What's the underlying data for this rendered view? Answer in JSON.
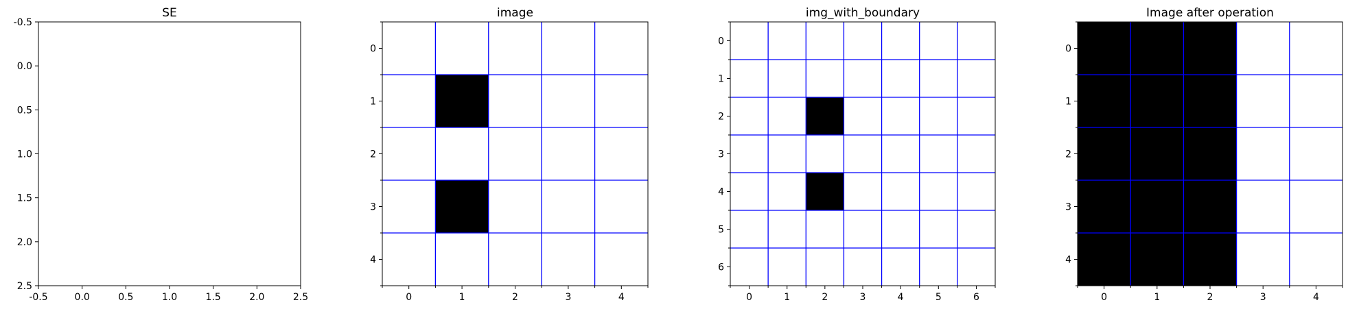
{
  "colors": {
    "grid": "#0000ff",
    "filled": "#000000",
    "empty": "#ffffff",
    "frame": "#000000"
  },
  "chart_data": [
    {
      "type": "heatmap",
      "title": "SE",
      "rows": 3,
      "cols": 3,
      "cells": [],
      "xlim": [
        -0.5,
        2.5
      ],
      "ylim": [
        2.5,
        -0.5
      ],
      "grid": false,
      "x_ticks": [
        "-0.5",
        "0.0",
        "0.5",
        "1.0",
        "1.5",
        "2.0",
        "2.5"
      ],
      "x_tick_values": [
        -0.5,
        0.0,
        0.5,
        1.0,
        1.5,
        2.0,
        2.5
      ],
      "y_ticks": [
        "-0.5",
        "0.0",
        "0.5",
        "1.0",
        "1.5",
        "2.0",
        "2.5"
      ],
      "y_tick_values": [
        -0.5,
        0.0,
        0.5,
        1.0,
        1.5,
        2.0,
        2.5
      ],
      "minor_ticks": false
    },
    {
      "type": "heatmap",
      "title": "image",
      "rows": 5,
      "cols": 5,
      "cells": [
        [
          0,
          0,
          0,
          0,
          0
        ],
        [
          0,
          1,
          0,
          0,
          0
        ],
        [
          0,
          0,
          0,
          0,
          0
        ],
        [
          0,
          1,
          0,
          0,
          0
        ],
        [
          0,
          0,
          0,
          0,
          0
        ]
      ],
      "xlim": [
        -0.5,
        4.5
      ],
      "ylim": [
        4.5,
        -0.5
      ],
      "grid": true,
      "x_ticks": [
        "0",
        "1",
        "2",
        "3",
        "4"
      ],
      "x_tick_values": [
        0,
        1,
        2,
        3,
        4
      ],
      "y_ticks": [
        "0",
        "1",
        "2",
        "3",
        "4"
      ],
      "y_tick_values": [
        0,
        1,
        2,
        3,
        4
      ],
      "minor_ticks": true
    },
    {
      "type": "heatmap",
      "title": "img_with_boundary",
      "rows": 7,
      "cols": 7,
      "cells": [
        [
          0,
          0,
          0,
          0,
          0,
          0,
          0
        ],
        [
          0,
          0,
          0,
          0,
          0,
          0,
          0
        ],
        [
          0,
          0,
          1,
          0,
          0,
          0,
          0
        ],
        [
          0,
          0,
          0,
          0,
          0,
          0,
          0
        ],
        [
          0,
          0,
          1,
          0,
          0,
          0,
          0
        ],
        [
          0,
          0,
          0,
          0,
          0,
          0,
          0
        ],
        [
          0,
          0,
          0,
          0,
          0,
          0,
          0
        ]
      ],
      "xlim": [
        -0.5,
        6.5
      ],
      "ylim": [
        6.5,
        -0.5
      ],
      "grid": true,
      "x_ticks": [
        "0",
        "1",
        "2",
        "3",
        "4",
        "5",
        "6"
      ],
      "x_tick_values": [
        0,
        1,
        2,
        3,
        4,
        5,
        6
      ],
      "y_ticks": [
        "0",
        "1",
        "2",
        "3",
        "4",
        "5",
        "6"
      ],
      "y_tick_values": [
        0,
        1,
        2,
        3,
        4,
        5,
        6
      ],
      "minor_ticks": true
    },
    {
      "type": "heatmap",
      "title": "Image after operation",
      "rows": 5,
      "cols": 5,
      "cells": [
        [
          1,
          1,
          1,
          0,
          0
        ],
        [
          1,
          1,
          1,
          0,
          0
        ],
        [
          1,
          1,
          1,
          0,
          0
        ],
        [
          1,
          1,
          1,
          0,
          0
        ],
        [
          1,
          1,
          1,
          0,
          0
        ]
      ],
      "xlim": [
        -0.5,
        4.5
      ],
      "ylim": [
        4.5,
        -0.5
      ],
      "grid": true,
      "x_ticks": [
        "0",
        "1",
        "2",
        "3",
        "4"
      ],
      "x_tick_values": [
        0,
        1,
        2,
        3,
        4
      ],
      "y_ticks": [
        "0",
        "1",
        "2",
        "3",
        "4"
      ],
      "y_tick_values": [
        0,
        1,
        2,
        3,
        4
      ],
      "minor_ticks": true
    }
  ]
}
